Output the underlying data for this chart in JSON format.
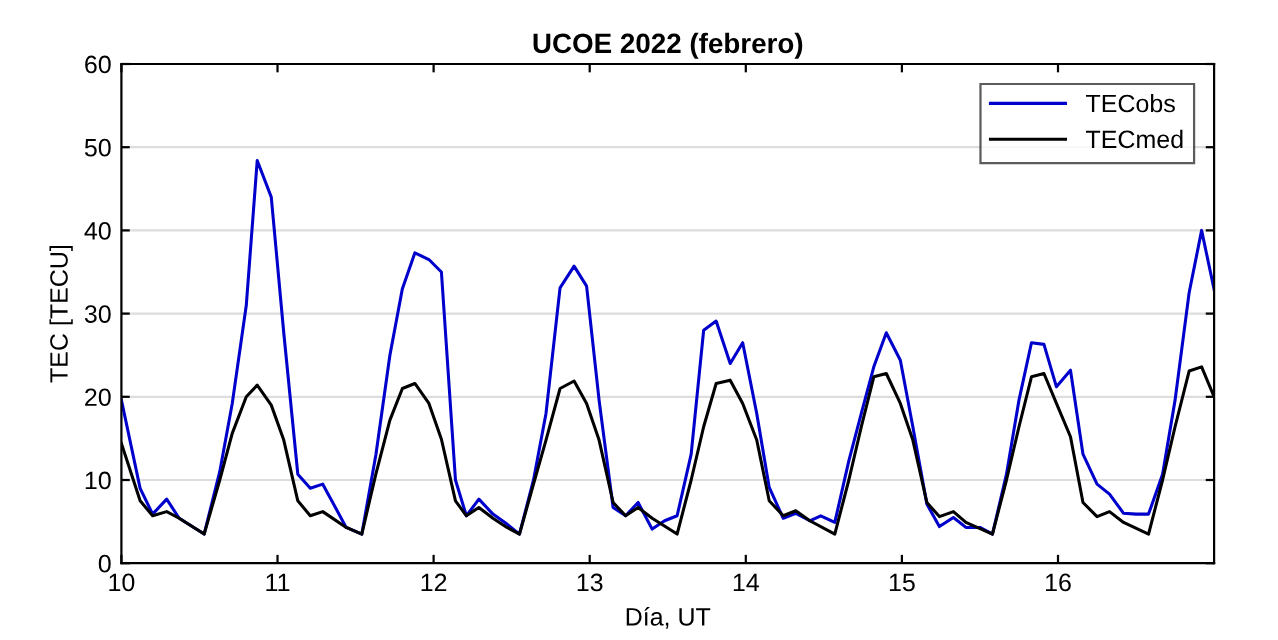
{
  "chart_data": {
    "type": "line",
    "title": "UCOE 2022 (febrero)",
    "xlabel": "Día, UT",
    "ylabel": "TEC [TECU]",
    "xlim": [
      10,
      17
    ],
    "xticks": [
      10,
      11,
      12,
      13,
      14,
      15,
      16
    ],
    "ylim": [
      0,
      60
    ],
    "yticks": [
      0,
      10,
      20,
      30,
      40,
      50,
      60
    ],
    "grid": "y",
    "legend": "top right",
    "series": [
      {
        "name": "TECobs",
        "color": "#0000cc",
        "x": [
          10.0,
          10.12,
          10.2,
          10.29,
          10.37,
          10.53,
          10.63,
          10.71,
          10.8,
          10.87,
          10.96,
          11.04,
          11.13,
          11.21,
          11.29,
          11.44,
          11.54,
          11.63,
          11.72,
          11.8,
          11.88,
          11.97,
          12.05,
          12.14,
          12.21,
          12.29,
          12.38,
          12.47,
          12.55,
          12.64,
          12.72,
          12.81,
          12.9,
          12.98,
          13.06,
          13.15,
          13.23,
          13.31,
          13.4,
          13.48,
          13.56,
          13.65,
          13.73,
          13.81,
          13.9,
          13.98,
          14.07,
          14.15,
          14.24,
          14.32,
          14.41,
          14.48,
          14.57,
          14.66,
          14.74,
          14.82,
          14.9,
          14.99,
          15.07,
          15.16,
          15.24,
          15.33,
          15.41,
          15.5,
          15.58,
          15.67,
          15.75,
          15.83,
          15.91,
          15.99,
          16.08,
          16.16,
          16.25,
          16.33,
          16.42,
          16.5,
          16.58,
          16.67,
          16.75,
          16.84,
          16.92,
          17.0
        ],
        "values": [
          19.6,
          9,
          5.9,
          7.7,
          5.4,
          3.5,
          11,
          19.2,
          31,
          48.4,
          44,
          27.7,
          10.7,
          9,
          9.5,
          4.3,
          3.5,
          13,
          25,
          33,
          37.3,
          36.5,
          35,
          10,
          5.7,
          7.7,
          5.9,
          4.7,
          3.5,
          10,
          18,
          33.1,
          35.7,
          33.3,
          19.6,
          6.7,
          5.7,
          7.3,
          4.1,
          5.1,
          5.7,
          13.1,
          28,
          29.1,
          24,
          26.5,
          18,
          9.1,
          5.4,
          6,
          5.1,
          5.7,
          4.9,
          12.3,
          18,
          23.6,
          27.7,
          24.4,
          16.4,
          7.1,
          4.4,
          5.5,
          4.3,
          4.3,
          3.5,
          10.7,
          19.6,
          26.5,
          26.3,
          21.2,
          23.2,
          13.1,
          9.5,
          8.3,
          6,
          5.9,
          5.9,
          10.7,
          19.6,
          32.5,
          40,
          32.9
        ]
      },
      {
        "name": "TECmed",
        "color": "#000000",
        "x": [
          10.0,
          10.12,
          10.2,
          10.29,
          10.37,
          10.53,
          10.63,
          10.71,
          10.8,
          10.87,
          10.96,
          11.04,
          11.13,
          11.21,
          11.29,
          11.44,
          11.54,
          11.63,
          11.72,
          11.8,
          11.88,
          11.97,
          12.05,
          12.14,
          12.21,
          12.29,
          12.38,
          12.47,
          12.55,
          12.64,
          12.72,
          12.81,
          12.9,
          12.98,
          13.06,
          13.15,
          13.23,
          13.31,
          13.4,
          13.56,
          13.65,
          13.73,
          13.81,
          13.9,
          13.98,
          14.07,
          14.15,
          14.24,
          14.32,
          14.41,
          14.57,
          14.66,
          14.74,
          14.82,
          14.9,
          14.99,
          15.07,
          15.16,
          15.24,
          15.33,
          15.41,
          15.58,
          15.67,
          15.75,
          15.83,
          15.91,
          15.99,
          16.08,
          16.16,
          16.25,
          16.33,
          16.42,
          16.58,
          16.67,
          16.75,
          16.84,
          16.92,
          17.0
        ],
        "values": [
          14.4,
          7.5,
          5.7,
          6.2,
          5.4,
          3.5,
          10,
          15.6,
          20,
          21.4,
          19,
          14.8,
          7.5,
          5.7,
          6.2,
          4.3,
          3.5,
          10.7,
          17.2,
          21,
          21.6,
          19.2,
          14.9,
          7.5,
          5.7,
          6.7,
          5.4,
          4.3,
          3.5,
          9.5,
          14.8,
          21,
          21.9,
          19.2,
          14.8,
          7.3,
          5.7,
          6.7,
          5.4,
          3.5,
          10,
          16.4,
          21.6,
          22,
          19.2,
          14.8,
          7.5,
          5.7,
          6.3,
          5.1,
          3.5,
          10,
          16.4,
          22.4,
          22.8,
          19.2,
          14.8,
          7.3,
          5.6,
          6.2,
          4.9,
          3.5,
          10,
          16.4,
          22.4,
          22.8,
          19.2,
          15.2,
          7.3,
          5.6,
          6.2,
          4.9,
          3.5,
          10,
          16.4,
          23.1,
          23.6,
          20
        ]
      }
    ]
  }
}
